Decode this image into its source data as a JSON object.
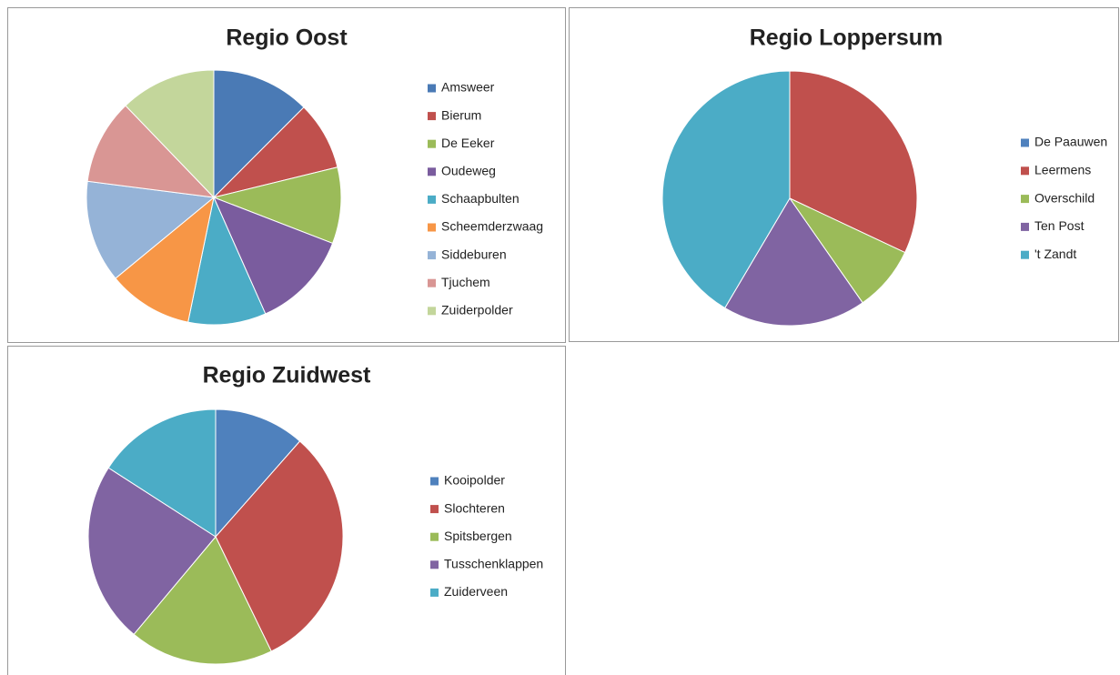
{
  "chart_data": [
    {
      "type": "pie",
      "title": "Regio Oost",
      "categories": [
        "Amsweer",
        "Bierum",
        "De Eeker",
        "Oudeweg",
        "Schaapbulten",
        "Scheemderzwaag",
        "Siddeburen",
        "Tjuchem",
        "Zuiderpolder"
      ],
      "values": [
        12.5,
        8.7,
        9.7,
        12.5,
        9.9,
        10.8,
        13,
        10.8,
        12.2
      ],
      "colors": [
        "#4a7ab5",
        "#c0504d",
        "#9bbb59",
        "#7a5c9e",
        "#4bacc6",
        "#f79646",
        "#95b3d7",
        "#d99694",
        "#c3d69b"
      ]
    },
    {
      "type": "pie",
      "title": "Regio Loppersum",
      "categories": [
        "De Paauwen",
        "Leermens",
        "Overschild",
        "Ten Post",
        "'t Zandt"
      ],
      "values": [
        0,
        32,
        8.3,
        18.2,
        41.5
      ],
      "colors": [
        "#4f81bd",
        "#c0504d",
        "#9bbb59",
        "#8064a2",
        "#4bacc6"
      ]
    },
    {
      "type": "pie",
      "title": "Regio Zuidwest",
      "categories": [
        "Kooipolder",
        "Slochteren",
        "Spitsbergen",
        "Tusschenklappen",
        "Zuiderveen"
      ],
      "values": [
        11.5,
        31.3,
        18.3,
        23,
        15.9
      ],
      "colors": [
        "#4f81bd",
        "#c0504d",
        "#9bbb59",
        "#8064a2",
        "#4bacc6"
      ]
    }
  ]
}
